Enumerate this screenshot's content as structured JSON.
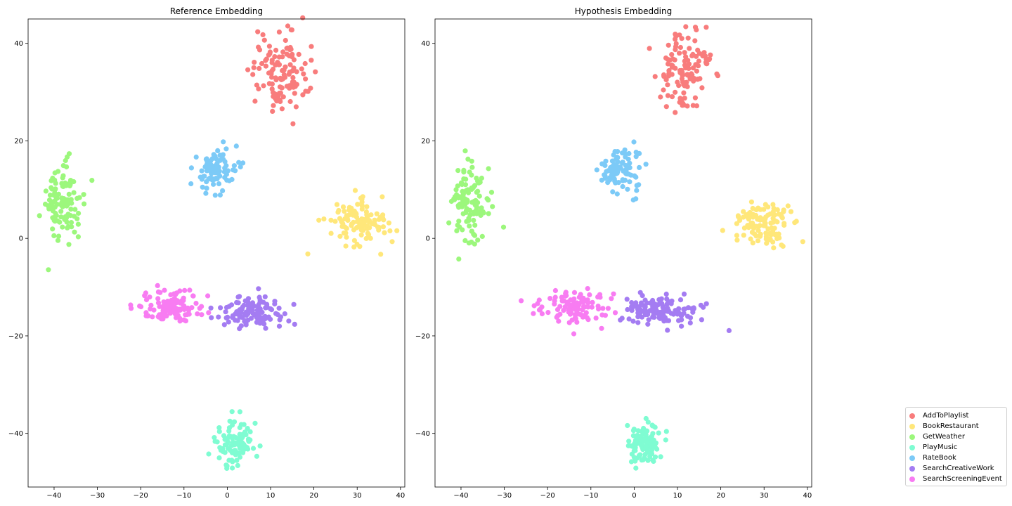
{
  "chart_data": [
    {
      "type": "scatter",
      "title": "Reference Embedding",
      "xlabel": "",
      "ylabel": "",
      "xlim": [
        -46,
        41
      ],
      "ylim": [
        -51,
        45
      ],
      "xticks": [
        -40,
        -30,
        -20,
        -10,
        0,
        10,
        20,
        30,
        40
      ],
      "yticks": [
        -40,
        -20,
        0,
        20,
        40
      ],
      "grid": false,
      "clusters": [
        {
          "name": "AddToPlaylist",
          "color": "#f87c7c",
          "center": [
            12,
            34
          ],
          "spread": [
            3.2,
            4.2
          ],
          "count": 120
        },
        {
          "name": "BookRestaurant",
          "color": "#ffe77a",
          "center": [
            30,
            3
          ],
          "spread": [
            3.5,
            2.3
          ],
          "count": 110
        },
        {
          "name": "GetWeather",
          "color": "#9cf77c",
          "center": [
            -38,
            7.5
          ],
          "spread": [
            2.2,
            4.0
          ],
          "count": 110
        },
        {
          "name": "PlayMusic",
          "color": "#7ffcd2",
          "center": [
            2,
            -42
          ],
          "spread": [
            2.3,
            2.2
          ],
          "count": 100
        },
        {
          "name": "RateBook",
          "color": "#7ccaf7",
          "center": [
            -3,
            14
          ],
          "spread": [
            2.4,
            2.3
          ],
          "count": 90
        },
        {
          "name": "SearchCreativeWork",
          "color": "#a47cf2",
          "center": [
            6,
            -15
          ],
          "spread": [
            4.3,
            1.6
          ],
          "count": 120
        },
        {
          "name": "SearchScreeningEvent",
          "color": "#f87cf2",
          "center": [
            -13,
            -14
          ],
          "spread": [
            3.7,
            1.8
          ],
          "count": 110
        }
      ]
    },
    {
      "type": "scatter",
      "title": "Hypothesis Embedding",
      "xlabel": "",
      "ylabel": "",
      "xlim": [
        -46,
        41
      ],
      "ylim": [
        -51,
        45
      ],
      "xticks": [
        -40,
        -30,
        -20,
        -10,
        0,
        10,
        20,
        30,
        40
      ],
      "yticks": [
        -40,
        -20,
        0,
        20,
        40
      ],
      "grid": false,
      "clusters": [
        {
          "name": "AddToPlaylist",
          "color": "#f87c7c",
          "center": [
            12,
            34
          ],
          "spread": [
            3.2,
            4.2
          ],
          "count": 120
        },
        {
          "name": "BookRestaurant",
          "color": "#ffe77a",
          "center": [
            30,
            3
          ],
          "spread": [
            3.5,
            2.3
          ],
          "count": 110
        },
        {
          "name": "GetWeather",
          "color": "#9cf77c",
          "center": [
            -38,
            7.5
          ],
          "spread": [
            2.2,
            4.0
          ],
          "count": 110
        },
        {
          "name": "PlayMusic",
          "color": "#7ffcd2",
          "center": [
            2,
            -42
          ],
          "spread": [
            2.3,
            2.2
          ],
          "count": 100
        },
        {
          "name": "RateBook",
          "color": "#7ccaf7",
          "center": [
            -3,
            14
          ],
          "spread": [
            2.4,
            2.3
          ],
          "count": 90
        },
        {
          "name": "SearchCreativeWork",
          "color": "#a47cf2",
          "center": [
            6,
            -15
          ],
          "spread": [
            4.3,
            1.6
          ],
          "count": 120
        },
        {
          "name": "SearchScreeningEvent",
          "color": "#f87cf2",
          "center": [
            -13,
            -14
          ],
          "spread": [
            3.7,
            1.8
          ],
          "count": 110
        }
      ]
    }
  ],
  "legend": {
    "placement": "lower-right",
    "items": [
      {
        "label": "AddToPlaylist",
        "color": "#f87c7c"
      },
      {
        "label": "BookRestaurant",
        "color": "#ffe77a"
      },
      {
        "label": "GetWeather",
        "color": "#9cf77c"
      },
      {
        "label": "PlayMusic",
        "color": "#7ffcd2"
      },
      {
        "label": "RateBook",
        "color": "#7ccaf7"
      },
      {
        "label": "SearchCreativeWork",
        "color": "#a47cf2"
      },
      {
        "label": "SearchScreeningEvent",
        "color": "#f87cf2"
      }
    ]
  }
}
